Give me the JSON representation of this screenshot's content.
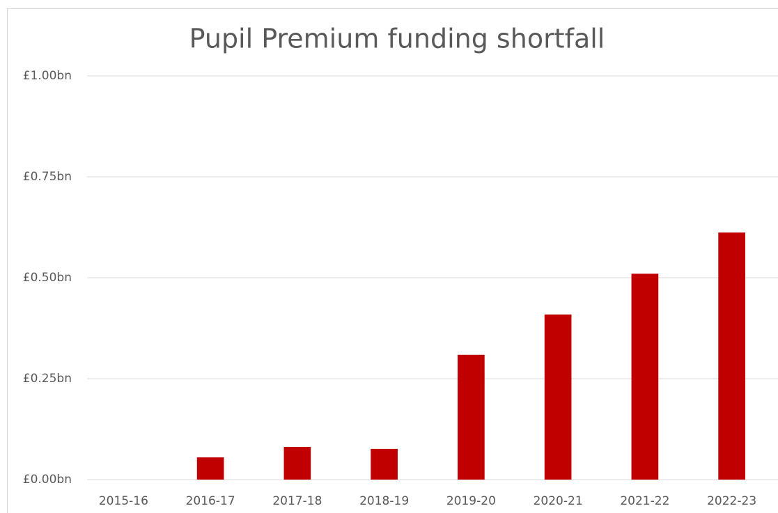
{
  "chart_data": {
    "type": "bar",
    "title": "Pupil Premium funding shortfall",
    "categories": [
      "2015-16",
      "2016-17",
      "2017-18",
      "2018-19",
      "2019-20",
      "2020-21",
      "2021-22",
      "2022-23"
    ],
    "values": [
      0,
      0.055,
      0.081,
      0.076,
      0.309,
      0.409,
      0.51,
      0.612
    ],
    "color": "#c00000",
    "ylim": [
      0,
      1
    ],
    "yticks": [
      {
        "value": 0,
        "label": "£0.00bn"
      },
      {
        "value": 0.25,
        "label": "£0.25bn"
      },
      {
        "value": 0.5,
        "label": "£0.50bn"
      },
      {
        "value": 0.75,
        "label": "£0.75bn"
      },
      {
        "value": 1,
        "label": "£1.00bn"
      }
    ],
    "grid": true
  }
}
